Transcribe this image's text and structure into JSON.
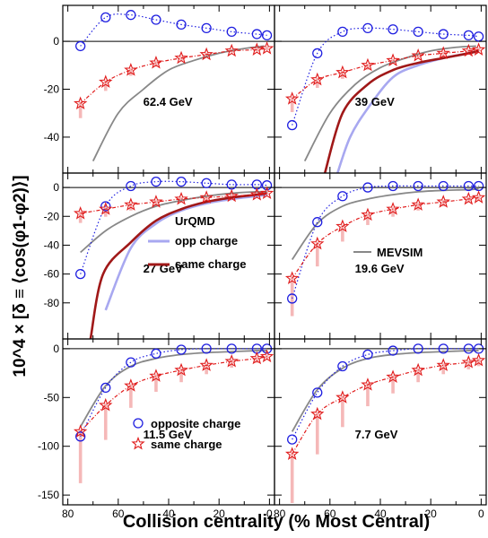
{
  "chart_data": {
    "type": "scatter",
    "x_axis_title": "Collision centrality (% Most Central)",
    "y_axis_title": "10^4 × [δ ≡ ⟨cos(φ1-φ2)⟩]",
    "x_ticks": [
      80,
      60,
      40,
      20,
      0
    ],
    "xlim": [
      82,
      -2
    ],
    "colors": {
      "opposite": "#1f1fe0",
      "same": "#e01a1a",
      "model_opp": "#a8a8f0",
      "model_same": "#a01818",
      "mevsim": "#888888",
      "syst": "#f5b8b8"
    },
    "panels": [
      {
        "energy": "62.4 GeV",
        "ylim": [
          -55,
          15
        ],
        "yticks": [
          0,
          -20,
          -40
        ],
        "opposite": {
          "x": [
            75,
            65,
            55,
            45,
            35,
            25,
            15,
            5,
            1
          ],
          "y": [
            -2,
            10,
            11,
            9,
            7,
            5.5,
            4,
            3,
            2.5
          ]
        },
        "same": {
          "x": [
            75,
            65,
            55,
            45,
            35,
            25,
            15,
            5,
            1
          ],
          "y": [
            -26,
            -17,
            -12,
            -9,
            -7,
            -5.5,
            -4,
            -3.5,
            -3
          ]
        },
        "mevsim": {
          "x": [
            70,
            60,
            50,
            40,
            30,
            20,
            10,
            2
          ],
          "y": [
            -50,
            -30,
            -20,
            -12,
            -8,
            -5,
            -3,
            -2
          ]
        }
      },
      {
        "energy": "39 GeV",
        "ylim": [
          -55,
          15
        ],
        "yticks": [
          0,
          -20,
          -40
        ],
        "opposite": {
          "x": [
            75,
            65,
            55,
            45,
            35,
            25,
            15,
            5,
            1
          ],
          "y": [
            -35,
            -5,
            4,
            5.5,
            5,
            4,
            3,
            2.5,
            2
          ]
        },
        "same": {
          "x": [
            75,
            65,
            55,
            45,
            35,
            25,
            15,
            5,
            1
          ],
          "y": [
            -24,
            -16,
            -13,
            -10,
            -8,
            -6,
            -5,
            -4,
            -3.5
          ]
        },
        "mevsim": {
          "x": [
            70,
            60,
            50,
            40,
            30,
            20,
            10,
            2
          ],
          "y": [
            -50,
            -30,
            -18,
            -11,
            -7,
            -4,
            -2.5,
            -2
          ]
        },
        "urqmd_opp": {
          "x": [
            57,
            52,
            45,
            35,
            25,
            15,
            5,
            1
          ],
          "y": [
            -55,
            -40,
            -28,
            -15,
            -10,
            -7,
            -5,
            -4
          ]
        },
        "urqmd_same": {
          "x": [
            62,
            55,
            45,
            35,
            25,
            15,
            5,
            1
          ],
          "y": [
            -55,
            -30,
            -18,
            -12,
            -9,
            -7,
            -5,
            -4
          ]
        }
      },
      {
        "energy": "27 GeV",
        "ylim": [
          -105,
          10
        ],
        "yticks": [
          0,
          -20,
          -40,
          -60,
          -80
        ],
        "opposite": {
          "x": [
            75,
            65,
            55,
            45,
            35,
            25,
            15,
            5,
            1
          ],
          "y": [
            -60,
            -13,
            1,
            4,
            4,
            3,
            2,
            2,
            1.5
          ]
        },
        "same": {
          "x": [
            75,
            65,
            55,
            45,
            35,
            25,
            15,
            5,
            1
          ],
          "y": [
            -18,
            -15,
            -12,
            -10,
            -8,
            -7,
            -6,
            -5,
            -4
          ]
        },
        "mevsim": {
          "x": [
            75,
            65,
            55,
            45,
            35,
            25,
            15,
            5,
            1
          ],
          "y": [
            -45,
            -30,
            -20,
            -13,
            -9,
            -6,
            -4,
            -3,
            -3
          ]
        },
        "urqmd_opp": {
          "x": [
            65,
            55,
            45,
            35,
            25,
            15,
            5,
            1
          ],
          "y": [
            -85,
            -42,
            -25,
            -16,
            -11,
            -8,
            -6,
            -5
          ]
        },
        "urqmd_same": {
          "x": [
            71,
            66,
            55,
            45,
            35,
            25,
            15,
            5,
            1
          ],
          "y": [
            -105,
            -60,
            -38,
            -23,
            -15,
            -10,
            -7,
            -5,
            -4
          ]
        },
        "legend": {
          "header": "UrQMD",
          "opp": "opp charge",
          "same": "same charge"
        }
      },
      {
        "energy": "19.6 GeV",
        "ylim": [
          -105,
          10
        ],
        "yticks": [
          0,
          -20,
          -40,
          -60,
          -80
        ],
        "opposite": {
          "x": [
            75,
            65,
            55,
            45,
            35,
            25,
            15,
            5,
            1
          ],
          "y": [
            -77,
            -24,
            -6,
            0,
            1,
            1,
            1,
            1,
            1
          ]
        },
        "same": {
          "x": [
            75,
            65,
            55,
            45,
            35,
            25,
            15,
            5,
            1
          ],
          "y": [
            -63,
            -39,
            -27,
            -19,
            -15,
            -12,
            -10,
            -8,
            -7
          ]
        },
        "mevsim": {
          "x": [
            75,
            65,
            55,
            45,
            35,
            25,
            15,
            5,
            1
          ],
          "y": [
            -50,
            -25,
            -13,
            -8,
            -5,
            -3,
            -2,
            -1.5,
            -1
          ]
        },
        "legend": {
          "mevsim": "MEVSIM"
        }
      },
      {
        "energy": "11.5 GeV",
        "ylim": [
          -160,
          10
        ],
        "yticks": [
          0,
          -50,
          -100,
          -150
        ],
        "opposite": {
          "x": [
            75,
            65,
            55,
            45,
            35,
            25,
            15,
            5,
            1
          ],
          "y": [
            -90,
            -40,
            -14,
            -5,
            -1,
            0,
            0,
            0,
            0
          ]
        },
        "same": {
          "x": [
            75,
            65,
            55,
            45,
            35,
            25,
            15,
            5,
            1
          ],
          "y": [
            -85,
            -58,
            -38,
            -28,
            -22,
            -17,
            -13,
            -10,
            -8
          ]
        },
        "mevsim": {
          "x": [
            75,
            65,
            55,
            45,
            35,
            25,
            15,
            5,
            1
          ],
          "y": [
            -80,
            -38,
            -18,
            -10,
            -6,
            -4,
            -3,
            -2,
            -2
          ]
        },
        "legend": {
          "opp": "opposite charge",
          "same": "same charge"
        }
      },
      {
        "energy": "7.7 GeV",
        "ylim": [
          -160,
          10
        ],
        "yticks": [
          0,
          -50,
          -100,
          -150
        ],
        "opposite": {
          "x": [
            75,
            65,
            55,
            45,
            35,
            25,
            15,
            5,
            1
          ],
          "y": [
            -93,
            -45,
            -18,
            -6,
            -2,
            0,
            0,
            0,
            0
          ]
        },
        "same": {
          "x": [
            75,
            65,
            55,
            45,
            35,
            25,
            15,
            5,
            1
          ],
          "y": [
            -108,
            -67,
            -50,
            -37,
            -29,
            -22,
            -17,
            -14,
            -12
          ]
        },
        "mevsim": {
          "x": [
            75,
            65,
            55,
            45,
            35,
            25,
            15,
            5,
            1
          ],
          "y": [
            -85,
            -42,
            -20,
            -10,
            -6,
            -4,
            -3,
            -2,
            -2
          ]
        }
      }
    ]
  }
}
